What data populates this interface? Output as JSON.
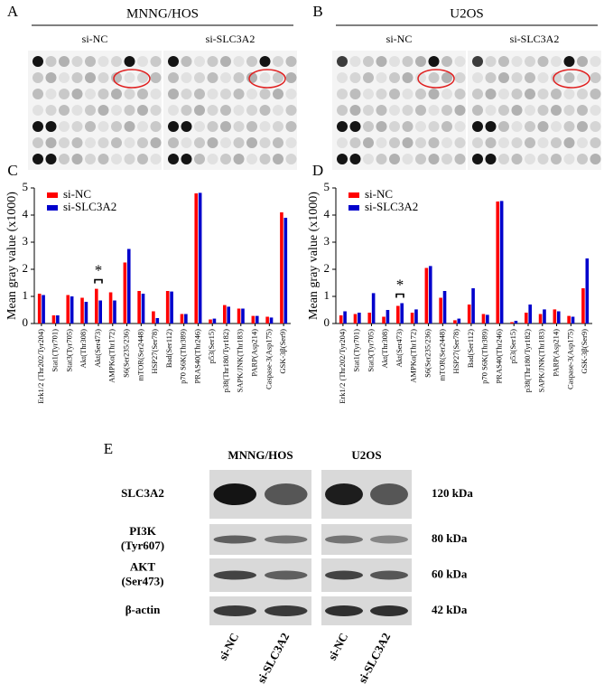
{
  "panel_labels": [
    "A",
    "B",
    "C",
    "D",
    "E"
  ],
  "dot_blots": [
    {
      "cell_line": "MNNG/HOS",
      "groups": [
        "si-NC",
        "si-SLC3A2"
      ]
    },
    {
      "cell_line": "U2OS",
      "groups": [
        "si-NC",
        "si-SLC3A2"
      ]
    }
  ],
  "chart_data": [
    {
      "type": "bar",
      "ylabel": "Mean gray value (x1000)",
      "categories": [
        "Erk1/2 (Thr202/Tyr204)",
        "Stat1(Tyr701)",
        "Stat3(Tyr705)",
        "Akt(Thr308)",
        "Akt(Ser473)",
        "AMPKα(Thr172)",
        "S6(Ser235/236)",
        "mTOR(Ser2448)",
        "HSP27(Ser78)",
        "Bad(Ser112)",
        "p70 S6K(Thr389)",
        "PRAS40(Thr246)",
        "p53(Ser15)",
        "p38(Thr180/Tyr182)",
        "SAPK/JNK(Thr183)",
        "PARP(Asp214)",
        "Caspase-3(Asp175)",
        "GSK-3β(Ser9)"
      ],
      "series": [
        {
          "name": "si-NC",
          "color": "#ff0000",
          "values": [
            1.1,
            0.3,
            1.05,
            0.95,
            1.28,
            1.15,
            2.25,
            1.2,
            0.45,
            1.2,
            0.35,
            4.8,
            0.15,
            0.68,
            0.55,
            0.28,
            0.25,
            4.1
          ]
        },
        {
          "name": "si-SLC3A2",
          "color": "#0000cc",
          "values": [
            1.05,
            0.3,
            1.0,
            0.8,
            0.85,
            0.85,
            2.75,
            1.1,
            0.2,
            1.18,
            0.35,
            4.82,
            0.18,
            0.62,
            0.55,
            0.28,
            0.22,
            3.9
          ]
        }
      ],
      "ylim": [
        0,
        5
      ],
      "yticks": [
        0,
        1,
        2,
        3,
        4,
        5
      ],
      "annotation": "*"
    },
    {
      "type": "bar",
      "ylabel": "Mean gray value (x1000)",
      "categories": [
        "Erk1/2 (Thr202/Tyr204)",
        "Stat1(Tyr701)",
        "Stat3(Tyr705)",
        "Akt(Thr308)",
        "Akt(Ser473)",
        "AMPKα(Thr172)",
        "S6(Ser235/236)",
        "mTOR(Ser2448)",
        "HSP27(Ser78)",
        "Bad(Ser112)",
        "p70 S6K(Thr389)",
        "PRAS40(Thr246)",
        "p53(Ser15)",
        "p38(Thr180/Tyr182)",
        "SAPK/JNK(Thr183)",
        "PARP(Asp214)",
        "Caspase-3(Asp175)",
        "GSK-3β(Ser9)"
      ],
      "series": [
        {
          "name": "si-NC",
          "color": "#ff0000",
          "values": [
            0.3,
            0.35,
            0.4,
            0.25,
            0.65,
            0.4,
            2.05,
            0.95,
            0.12,
            0.7,
            0.35,
            4.5,
            0.05,
            0.4,
            0.35,
            0.52,
            0.28,
            1.3
          ]
        },
        {
          "name": "si-SLC3A2",
          "color": "#0000cc",
          "values": [
            0.45,
            0.4,
            1.12,
            0.5,
            0.75,
            0.52,
            2.12,
            1.2,
            0.18,
            1.3,
            0.32,
            4.52,
            0.1,
            0.7,
            0.52,
            0.45,
            0.25,
            2.4
          ]
        }
      ],
      "ylim": [
        0,
        5
      ],
      "yticks": [
        0,
        1,
        2,
        3,
        4,
        5
      ],
      "annotation": "*"
    }
  ],
  "western_blot": {
    "cell_lines": [
      "MNNG/HOS",
      "U2OS"
    ],
    "proteins": [
      {
        "name": [
          "SLC3A2"
        ],
        "size": "120 kDa"
      },
      {
        "name": [
          "PI3K",
          "(Tyr607)"
        ],
        "size": "80 kDa"
      },
      {
        "name": [
          "AKT",
          "(Ser473)"
        ],
        "size": "60 kDa"
      },
      {
        "name": [
          "β-actin"
        ],
        "size": "42 kDa"
      }
    ],
    "lanes": [
      "si-NC",
      "si-SLC3A2",
      "si-NC",
      "si-SLC3A2"
    ]
  }
}
